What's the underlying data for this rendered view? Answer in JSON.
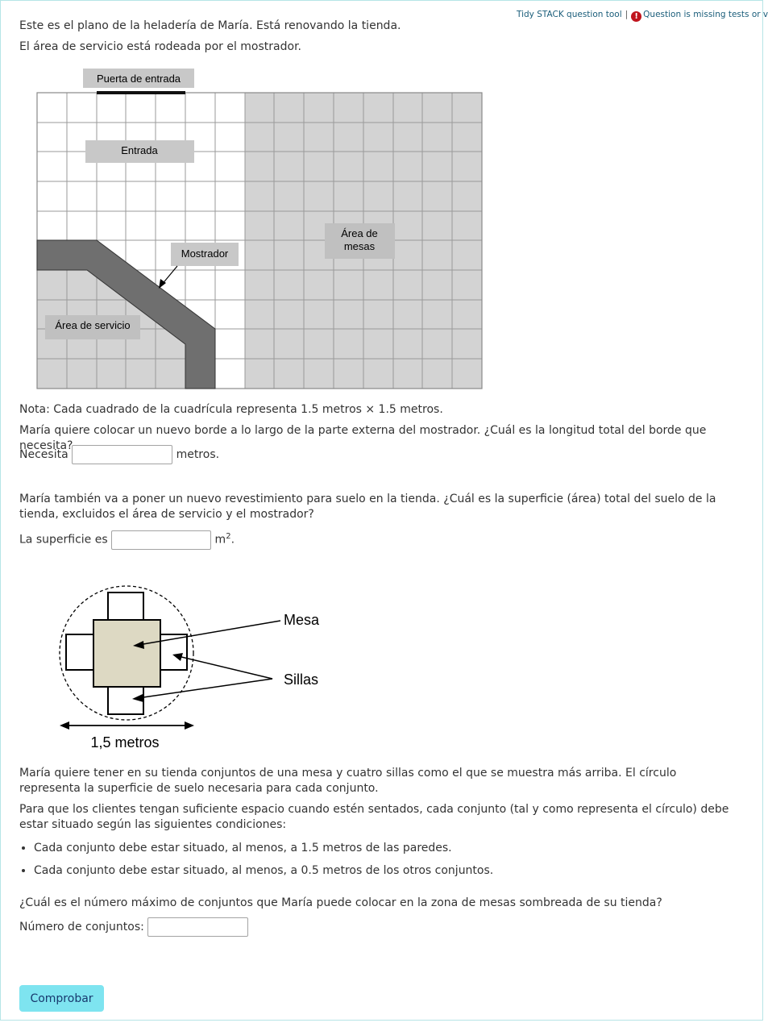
{
  "toolbar": {
    "tidy_link": "Tidy STACK question tool",
    "separator": "|",
    "warning_icon": "exclamation-circle-icon",
    "warning_text": "Question is missing tests or variants"
  },
  "intro": {
    "line1": "Este es el plano de la heladería de María. Está renovando la tienda.",
    "line2": "El área de servicio está rodeada por el mostrador."
  },
  "plan": {
    "door_label": "Puerta de entrada",
    "entrance_label": "Entrada",
    "counter_label": "Mostrador",
    "tables_label_line1": "Área de",
    "tables_label_line2": "mesas",
    "service_label": "Área de servicio"
  },
  "note": "Nota: Cada cuadrado de la cuadrícula representa 1.5 metros × 1.5 metros.",
  "q1": {
    "text": "María quiere colocar un nuevo borde a lo largo de la parte externa del mostrador. ¿Cuál es la longitud total del borde que necesita?",
    "prefix": "Necesita",
    "value": "",
    "suffix": "metros."
  },
  "q2": {
    "text": "María también va a poner un nuevo revestimiento para suelo en la tienda. ¿Cuál es la superficie (área) total del suelo de la tienda, excluidos el área de servicio y el mostrador?",
    "prefix": "La superficie es",
    "value": "",
    "unit": "m",
    "unit_sup": "2",
    "suffix": "."
  },
  "table_figure": {
    "mesa_label": "Mesa",
    "sillas_label": "Sillas",
    "measure_label": "1,5 metros"
  },
  "q3": {
    "para1": "María quiere tener en su tienda conjuntos de una mesa y cuatro sillas como el que se muestra más arriba. El círculo representa la superficie de suelo necesaria para cada conjunto.",
    "para2": "Para que los clientes tengan suficiente espacio cuando estén sentados, cada conjunto (tal y como representa el círculo) debe estar situado según las siguientes condiciones:",
    "conditions": [
      "Cada conjunto debe estar situado, al menos, a 1.5 metros de las paredes.",
      "Cada conjunto debe estar situado, al menos, a 0.5 metros de los otros conjuntos."
    ],
    "question": "¿Cuál es el número máximo de conjuntos que María puede colocar en la zona de mesas sombreada de su tienda?",
    "prefix": "Número de conjuntos:",
    "value": ""
  },
  "check_button": "Comprobar",
  "colors": {
    "button_bg": "#7ee4f0",
    "frame_border": "#b6e5e6",
    "shaded_area": "#d3d3d3",
    "counter": "#6f6f6f",
    "table_fill": "#ddd9c3",
    "warning": "#c0141d"
  }
}
